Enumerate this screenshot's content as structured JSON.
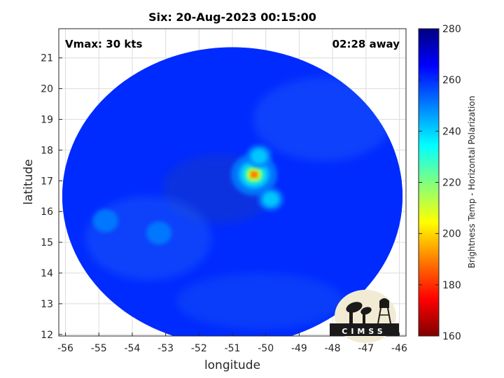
{
  "chart_data": {
    "type": "heatmap",
    "title": "Six: 20-Aug-2023 00:15:00",
    "annotations": {
      "vmax": "Vmax: 30 kts",
      "time_away": "02:28 away"
    },
    "xlabel": "longitude",
    "ylabel": "latitude",
    "xlim": [
      -56.2,
      -45.8
    ],
    "ylim": [
      11.95,
      21.95
    ],
    "xticks": [
      "-56",
      "-55",
      "-54",
      "-53",
      "-52",
      "-51",
      "-50",
      "-49",
      "-48",
      "-47",
      "-46"
    ],
    "yticks": [
      "12",
      "13",
      "14",
      "15",
      "16",
      "17",
      "18",
      "19",
      "20",
      "21"
    ],
    "grid": true,
    "colorbar": {
      "label": "Brightness Temp - Horizontal Polarization",
      "range": [
        160,
        280
      ],
      "ticks": [
        "160",
        "180",
        "200",
        "220",
        "240",
        "260",
        "280"
      ],
      "colors": [
        "#800000",
        "#ff0000",
        "#ff8000",
        "#ffff00",
        "#80ff80",
        "#00ffff",
        "#0080ff",
        "#0000ff",
        "#000080"
      ]
    },
    "swath": {
      "center": [
        -51.0,
        16.5
      ],
      "lon_radius": 5.1,
      "lat_radius": 4.85,
      "background_value": 260
    },
    "features": [
      {
        "name": "core",
        "lon": -50.35,
        "lat": 17.2,
        "min_value": 185
      },
      {
        "name": "band-north",
        "lon": -50.2,
        "lat": 17.8,
        "min_value": 235
      },
      {
        "name": "band-east",
        "lon": -49.85,
        "lat": 16.4,
        "min_value": 228
      },
      {
        "name": "cell-west",
        "lon": -54.8,
        "lat": 15.7,
        "min_value": 242
      },
      {
        "name": "cell-southwest",
        "lon": -53.2,
        "lat": 15.3,
        "min_value": 248
      }
    ]
  },
  "logo": {
    "text": "CIMSS"
  }
}
